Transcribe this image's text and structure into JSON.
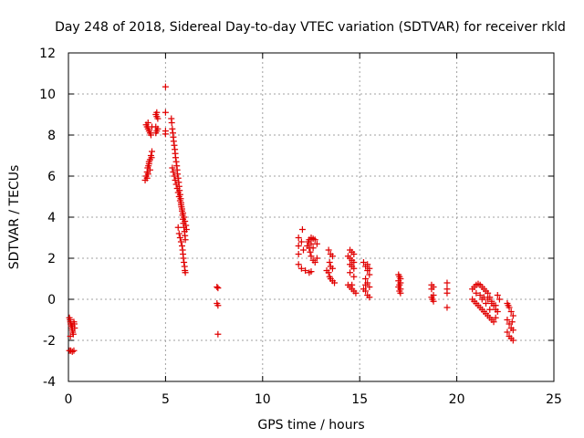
{
  "chart_data": {
    "type": "scatter",
    "title": "Day 248 of 2018, Sidereal Day-to-day VTEC variation (SDTVAR) for receiver rkld",
    "xlabel": "GPS time / hours",
    "ylabel": "SDTVAR / TECUs",
    "xlim": [
      0,
      25
    ],
    "ylim": [
      -4,
      12
    ],
    "xticks": [
      0,
      5,
      10,
      15,
      20,
      25
    ],
    "yticks": [
      -4,
      -2,
      0,
      2,
      4,
      6,
      8,
      10,
      12
    ],
    "xtick_labels": [
      "0",
      "5",
      "10",
      "15",
      "20",
      "25"
    ],
    "ytick_labels": [
      "-4",
      "-2",
      "0",
      "2",
      "4",
      "6",
      "8",
      "10",
      "12"
    ],
    "grid": true,
    "marker": "+",
    "color": "#e00000",
    "series": [
      {
        "name": "SDTVAR",
        "points": [
          [
            0.05,
            -0.9
          ],
          [
            0.08,
            -1.0
          ],
          [
            0.1,
            -1.1
          ],
          [
            0.12,
            -1.2
          ],
          [
            0.15,
            -1.3
          ],
          [
            0.18,
            -1.4
          ],
          [
            0.2,
            -1.5
          ],
          [
            0.22,
            -1.6
          ],
          [
            0.25,
            -1.7
          ],
          [
            0.28,
            -1.1
          ],
          [
            0.3,
            -1.2
          ],
          [
            0.32,
            -1.4
          ],
          [
            0.1,
            -1.8
          ],
          [
            0.2,
            -1.3
          ],
          [
            0.05,
            -2.5
          ],
          [
            0.12,
            -2.5
          ],
          [
            0.2,
            -2.55
          ],
          [
            0.28,
            -2.5
          ],
          [
            3.95,
            5.8
          ],
          [
            4.0,
            6.0
          ],
          [
            4.05,
            6.2
          ],
          [
            4.08,
            6.4
          ],
          [
            4.12,
            6.5
          ],
          [
            4.15,
            6.6
          ],
          [
            4.2,
            6.8
          ],
          [
            4.25,
            7.0
          ],
          [
            4.3,
            7.2
          ],
          [
            4.1,
            6.1
          ],
          [
            4.2,
            6.3
          ],
          [
            4.05,
            5.9
          ],
          [
            4.28,
            6.9
          ],
          [
            4.15,
            6.7
          ],
          [
            4.0,
            8.5
          ],
          [
            4.05,
            8.4
          ],
          [
            4.1,
            8.3
          ],
          [
            4.15,
            8.2
          ],
          [
            4.2,
            8.1
          ],
          [
            4.25,
            8.0
          ],
          [
            4.3,
            8.4
          ],
          [
            4.1,
            8.6
          ],
          [
            4.5,
            9.0
          ],
          [
            4.55,
            8.9
          ],
          [
            4.6,
            8.8
          ],
          [
            4.55,
            9.1
          ],
          [
            4.5,
            8.4
          ],
          [
            4.6,
            8.3
          ],
          [
            4.55,
            8.2
          ],
          [
            4.5,
            8.1
          ],
          [
            5.0,
            10.35
          ],
          [
            5.0,
            9.1
          ],
          [
            5.0,
            8.2
          ],
          [
            5.0,
            8.05
          ],
          [
            5.3,
            8.8
          ],
          [
            5.32,
            8.6
          ],
          [
            5.35,
            8.3
          ],
          [
            5.38,
            8.1
          ],
          [
            5.4,
            7.9
          ],
          [
            5.42,
            7.7
          ],
          [
            5.45,
            7.5
          ],
          [
            5.48,
            7.3
          ],
          [
            5.5,
            7.1
          ],
          [
            5.52,
            6.9
          ],
          [
            5.55,
            6.7
          ],
          [
            5.58,
            6.5
          ],
          [
            5.6,
            6.3
          ],
          [
            5.62,
            6.1
          ],
          [
            5.65,
            5.9
          ],
          [
            5.68,
            5.7
          ],
          [
            5.7,
            5.5
          ],
          [
            5.72,
            5.3
          ],
          [
            5.75,
            5.1
          ],
          [
            5.78,
            4.9
          ],
          [
            5.8,
            4.7
          ],
          [
            5.82,
            4.5
          ],
          [
            5.85,
            4.3
          ],
          [
            5.88,
            4.1
          ],
          [
            5.9,
            3.9
          ],
          [
            5.92,
            3.7
          ],
          [
            5.95,
            3.5
          ],
          [
            5.98,
            3.3
          ],
          [
            6.0,
            3.1
          ],
          [
            6.02,
            2.9
          ],
          [
            5.35,
            6.4
          ],
          [
            5.4,
            6.2
          ],
          [
            5.45,
            6.0
          ],
          [
            5.5,
            5.8
          ],
          [
            5.55,
            5.6
          ],
          [
            5.6,
            5.4
          ],
          [
            5.65,
            5.2
          ],
          [
            5.7,
            5.0
          ],
          [
            5.75,
            4.8
          ],
          [
            5.8,
            4.6
          ],
          [
            5.85,
            4.4
          ],
          [
            5.9,
            4.2
          ],
          [
            5.95,
            4.0
          ],
          [
            6.0,
            3.8
          ],
          [
            6.05,
            3.6
          ],
          [
            6.08,
            3.4
          ],
          [
            5.65,
            3.5
          ],
          [
            5.7,
            3.2
          ],
          [
            5.75,
            3.0
          ],
          [
            5.8,
            2.8
          ],
          [
            5.85,
            2.6
          ],
          [
            5.88,
            2.4
          ],
          [
            5.9,
            2.2
          ],
          [
            5.92,
            2.0
          ],
          [
            5.95,
            1.8
          ],
          [
            5.98,
            1.6
          ],
          [
            6.0,
            1.4
          ],
          [
            6.02,
            1.3
          ],
          [
            7.65,
            0.6
          ],
          [
            7.7,
            0.55
          ],
          [
            7.65,
            -0.2
          ],
          [
            7.7,
            -0.3
          ],
          [
            7.7,
            -1.7
          ],
          [
            11.85,
            3.0
          ],
          [
            11.85,
            2.6
          ],
          [
            11.85,
            2.2
          ],
          [
            11.85,
            1.7
          ],
          [
            12.05,
            3.4
          ],
          [
            12.0,
            2.8
          ],
          [
            12.1,
            2.4
          ],
          [
            12.0,
            1.5
          ],
          [
            12.2,
            1.4
          ],
          [
            12.4,
            1.3
          ],
          [
            12.5,
            1.35
          ],
          [
            12.3,
            2.6
          ],
          [
            12.35,
            2.8
          ],
          [
            12.4,
            2.9
          ],
          [
            12.5,
            3.0
          ],
          [
            12.6,
            2.95
          ],
          [
            12.7,
            2.9
          ],
          [
            12.8,
            2.7
          ],
          [
            12.4,
            2.5
          ],
          [
            12.45,
            2.3
          ],
          [
            12.5,
            2.1
          ],
          [
            12.6,
            1.9
          ],
          [
            12.7,
            1.8
          ],
          [
            12.8,
            2.0
          ],
          [
            12.5,
            2.7
          ],
          [
            12.6,
            2.5
          ],
          [
            13.4,
            2.4
          ],
          [
            13.5,
            2.2
          ],
          [
            13.6,
            2.1
          ],
          [
            13.45,
            1.8
          ],
          [
            13.5,
            1.6
          ],
          [
            13.6,
            1.5
          ],
          [
            13.4,
            1.3
          ],
          [
            13.45,
            1.1
          ],
          [
            13.5,
            1.0
          ],
          [
            13.6,
            0.9
          ],
          [
            13.7,
            0.8
          ],
          [
            13.3,
            1.4
          ],
          [
            14.5,
            2.4
          ],
          [
            14.6,
            2.3
          ],
          [
            14.7,
            2.2
          ],
          [
            14.5,
            2.0
          ],
          [
            14.6,
            1.9
          ],
          [
            14.7,
            1.8
          ],
          [
            14.5,
            1.7
          ],
          [
            14.6,
            1.6
          ],
          [
            14.7,
            1.5
          ],
          [
            14.5,
            1.3
          ],
          [
            14.4,
            0.7
          ],
          [
            14.5,
            0.6
          ],
          [
            14.6,
            0.5
          ],
          [
            14.7,
            0.4
          ],
          [
            14.8,
            0.3
          ],
          [
            14.6,
            0.7
          ],
          [
            14.7,
            1.1
          ],
          [
            14.4,
            2.1
          ],
          [
            15.2,
            1.8
          ],
          [
            15.3,
            1.6
          ],
          [
            15.4,
            1.4
          ],
          [
            15.5,
            1.2
          ],
          [
            15.3,
            1.0
          ],
          [
            15.4,
            0.8
          ],
          [
            15.5,
            0.6
          ],
          [
            15.3,
            0.4
          ],
          [
            15.4,
            0.2
          ],
          [
            15.5,
            0.1
          ],
          [
            15.2,
            0.5
          ],
          [
            15.4,
            1.7
          ],
          [
            15.5,
            1.5
          ],
          [
            15.3,
            0.7
          ],
          [
            17.0,
            1.2
          ],
          [
            17.05,
            1.1
          ],
          [
            17.1,
            1.0
          ],
          [
            17.0,
            0.9
          ],
          [
            17.1,
            0.8
          ],
          [
            17.05,
            0.7
          ],
          [
            17.0,
            0.6
          ],
          [
            17.1,
            0.5
          ],
          [
            17.05,
            0.4
          ],
          [
            17.1,
            0.3
          ],
          [
            18.7,
            0.7
          ],
          [
            18.8,
            0.6
          ],
          [
            18.7,
            0.5
          ],
          [
            18.8,
            0.2
          ],
          [
            18.7,
            0.1
          ],
          [
            18.8,
            -0.1
          ],
          [
            18.75,
            0.0
          ],
          [
            19.5,
            0.8
          ],
          [
            19.5,
            0.5
          ],
          [
            19.5,
            0.3
          ],
          [
            19.5,
            -0.4
          ],
          [
            20.8,
            0.5
          ],
          [
            20.9,
            0.6
          ],
          [
            21.0,
            0.7
          ],
          [
            21.1,
            0.75
          ],
          [
            21.2,
            0.7
          ],
          [
            21.3,
            0.6
          ],
          [
            21.4,
            0.5
          ],
          [
            21.5,
            0.4
          ],
          [
            21.6,
            0.3
          ],
          [
            21.7,
            0.1
          ],
          [
            21.8,
            -0.1
          ],
          [
            21.9,
            -0.3
          ],
          [
            22.0,
            -0.5
          ],
          [
            22.1,
            -0.6
          ],
          [
            20.8,
            0.0
          ],
          [
            20.9,
            -0.1
          ],
          [
            21.0,
            -0.2
          ],
          [
            21.1,
            -0.3
          ],
          [
            21.2,
            -0.4
          ],
          [
            21.3,
            -0.5
          ],
          [
            21.4,
            -0.6
          ],
          [
            21.5,
            -0.7
          ],
          [
            21.6,
            -0.8
          ],
          [
            21.7,
            -0.9
          ],
          [
            21.8,
            -1.0
          ],
          [
            21.9,
            -1.1
          ],
          [
            22.0,
            -0.9
          ],
          [
            21.0,
            0.3
          ],
          [
            21.2,
            0.2
          ],
          [
            21.4,
            0.1
          ],
          [
            21.6,
            0.0
          ],
          [
            21.8,
            -0.2
          ],
          [
            22.0,
            -0.3
          ],
          [
            22.1,
            0.2
          ],
          [
            22.2,
            0.0
          ],
          [
            21.5,
            -0.2
          ],
          [
            21.3,
            0.0
          ],
          [
            21.7,
            -0.5
          ],
          [
            22.6,
            -0.2
          ],
          [
            22.7,
            -0.4
          ],
          [
            22.8,
            -0.6
          ],
          [
            22.9,
            -0.8
          ],
          [
            22.6,
            -1.0
          ],
          [
            22.7,
            -1.2
          ],
          [
            22.8,
            -1.4
          ],
          [
            22.9,
            -1.5
          ],
          [
            22.6,
            -1.6
          ],
          [
            22.7,
            -1.8
          ],
          [
            22.8,
            -1.9
          ],
          [
            22.9,
            -2.0
          ],
          [
            22.65,
            -0.3
          ],
          [
            22.85,
            -1.1
          ]
        ]
      }
    ]
  }
}
